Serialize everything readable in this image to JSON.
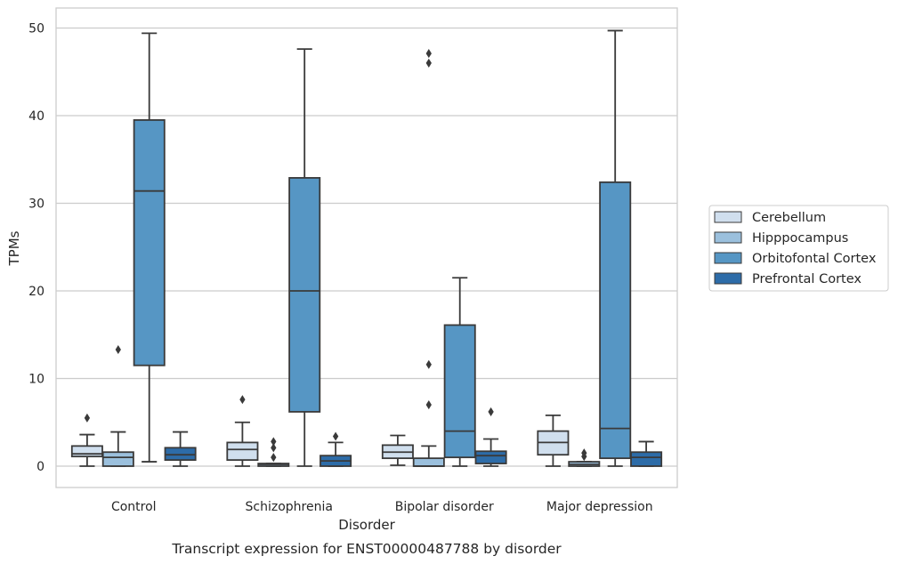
{
  "chart_data": {
    "type": "boxplot",
    "xlabel": "Disorder",
    "ylabel": "TPMs",
    "caption": "Transcript expression for ENST00000487788 by disorder",
    "ylim": [
      -2.4,
      52.3
    ],
    "yticks": [
      0,
      10,
      20,
      30,
      40,
      50
    ],
    "grid": "horizontal",
    "legend_position": "right",
    "categories": [
      "Control",
      "Schizophrenia",
      "Bipolar disorder",
      "Major depression"
    ],
    "series": [
      {
        "name": "Cerebellum",
        "color": "#d0dfee",
        "boxes": [
          {
            "whisker_low": 0,
            "q1": 1.1,
            "median": 1.4,
            "q3": 2.3,
            "whisker_high": 3.6,
            "outliers": [
              5.5
            ]
          },
          {
            "whisker_low": 0,
            "q1": 0.7,
            "median": 1.9,
            "q3": 2.7,
            "whisker_high": 5.0,
            "outliers": [
              7.6
            ]
          },
          {
            "whisker_low": 0.1,
            "q1": 0.9,
            "median": 1.6,
            "q3": 2.4,
            "whisker_high": 3.5,
            "outliers": []
          },
          {
            "whisker_low": 0,
            "q1": 1.3,
            "median": 2.7,
            "q3": 4.0,
            "whisker_high": 5.8,
            "outliers": []
          }
        ]
      },
      {
        "name": "Hipppocampus",
        "color": "#9bc0dd",
        "boxes": [
          {
            "whisker_low": 0,
            "q1": 0,
            "median": 1.0,
            "q3": 1.6,
            "whisker_high": 3.9,
            "outliers": [
              13.3
            ]
          },
          {
            "whisker_low": 0,
            "q1": 0,
            "median": 0.2,
            "q3": 0.3,
            "whisker_high": 0.3,
            "outliers": [
              1.0,
              2.1,
              2.8
            ]
          },
          {
            "whisker_low": 0,
            "q1": 0,
            "median": 0,
            "q3": 0.9,
            "whisker_high": 2.3,
            "outliers": [
              7.0,
              11.6,
              46.0,
              47.1
            ]
          },
          {
            "whisker_low": 0,
            "q1": 0,
            "median": 0.2,
            "q3": 0.5,
            "whisker_high": 0.5,
            "outliers": [
              1.1,
              1.5
            ]
          }
        ]
      },
      {
        "name": "Orbitofontal Cortex",
        "color": "#5696c4",
        "boxes": [
          {
            "whisker_low": 0.5,
            "q1": 11.5,
            "median": 31.4,
            "q3": 39.5,
            "whisker_high": 49.4,
            "outliers": []
          },
          {
            "whisker_low": 0,
            "q1": 6.2,
            "median": 20.0,
            "q3": 32.9,
            "whisker_high": 47.6,
            "outliers": []
          },
          {
            "whisker_low": 0,
            "q1": 1.0,
            "median": 4.0,
            "q3": 16.1,
            "whisker_high": 21.5,
            "outliers": []
          },
          {
            "whisker_low": 0,
            "q1": 0.9,
            "median": 4.3,
            "q3": 32.4,
            "whisker_high": 49.7,
            "outliers": []
          }
        ]
      },
      {
        "name": "Prefrontal Cortex",
        "color": "#2d6ca8",
        "boxes": [
          {
            "whisker_low": 0,
            "q1": 0.7,
            "median": 1.3,
            "q3": 2.1,
            "whisker_high": 3.9,
            "outliers": []
          },
          {
            "whisker_low": 0,
            "q1": 0,
            "median": 0.6,
            "q3": 1.2,
            "whisker_high": 2.7,
            "outliers": [
              3.4
            ]
          },
          {
            "whisker_low": 0,
            "q1": 0.3,
            "median": 1.2,
            "q3": 1.7,
            "whisker_high": 3.1,
            "outliers": [
              6.2
            ]
          },
          {
            "whisker_low": 0,
            "q1": 0,
            "median": 1.0,
            "q3": 1.6,
            "whisker_high": 2.8,
            "outliers": []
          }
        ]
      }
    ]
  }
}
